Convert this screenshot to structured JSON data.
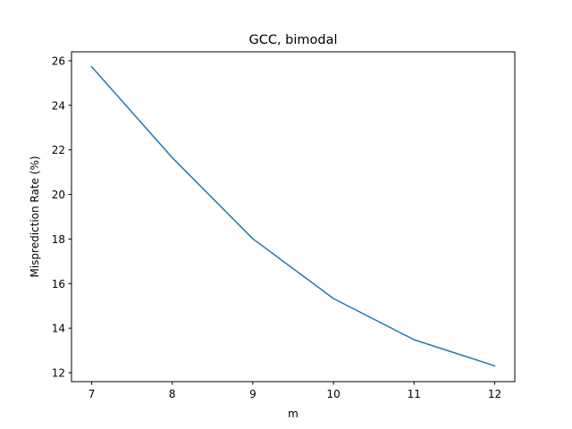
{
  "chart_data": {
    "type": "line",
    "title": "GCC, bimodal",
    "xlabel": "m",
    "ylabel": "Misprediction Rate (%)",
    "x": [
      7,
      8,
      9,
      10,
      11,
      12
    ],
    "series": [
      {
        "name": "GCC bimodal",
        "values": [
          25.73,
          21.65,
          18.01,
          15.33,
          13.48,
          12.31
        ],
        "color": "#1f77b4"
      }
    ],
    "xlim": [
      6.75,
      12.25
    ],
    "ylim": [
      11.6,
      26.4
    ],
    "xticks": [
      7,
      8,
      9,
      10,
      11,
      12
    ],
    "yticks": [
      12,
      14,
      16,
      18,
      20,
      22,
      24,
      26
    ],
    "grid": false,
    "legend": "none"
  }
}
